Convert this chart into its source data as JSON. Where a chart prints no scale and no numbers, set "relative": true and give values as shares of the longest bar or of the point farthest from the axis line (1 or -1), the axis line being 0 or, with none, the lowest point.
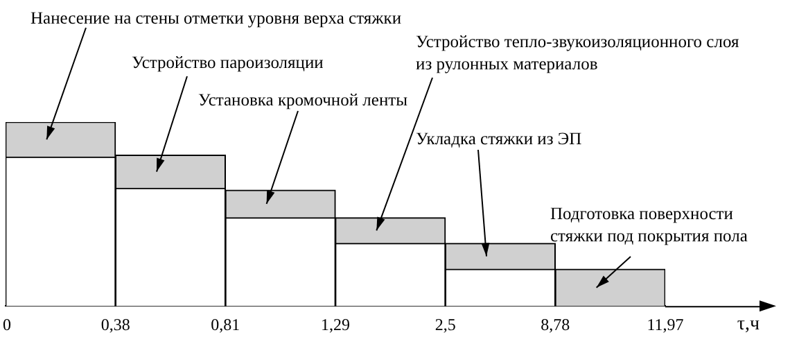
{
  "chart_data": {
    "type": "bar",
    "stacked": true,
    "relative": true,
    "xlabel": "τ,ч",
    "categories": [
      null,
      null,
      null,
      null,
      null,
      null
    ],
    "series": [
      {
        "color": "#ffffff",
        "values": [
          0.81,
          0.64,
          0.48,
          0.34,
          0.2,
          0
        ]
      },
      {
        "color": "#d0d0d0",
        "values": [
          0.19,
          0.18,
          0.15,
          0.14,
          0.14,
          0.2
        ]
      }
    ],
    "annotations": [
      "Нанесение на стены отметки уровня верха стяжки",
      "Устройство пароизоляции",
      "Установка кромочной ленты",
      "Устройство тепло-звукоизоляционного слоя из рулонных материалов",
      "Укладка стяжки из ЭП",
      "Подготовка поверхности стяжки под покрытия пола",
      "0",
      "0,38",
      "0,81",
      "1,29",
      "2,5",
      "8,78",
      "11,97"
    ],
    "grid": false,
    "legend": false
  }
}
